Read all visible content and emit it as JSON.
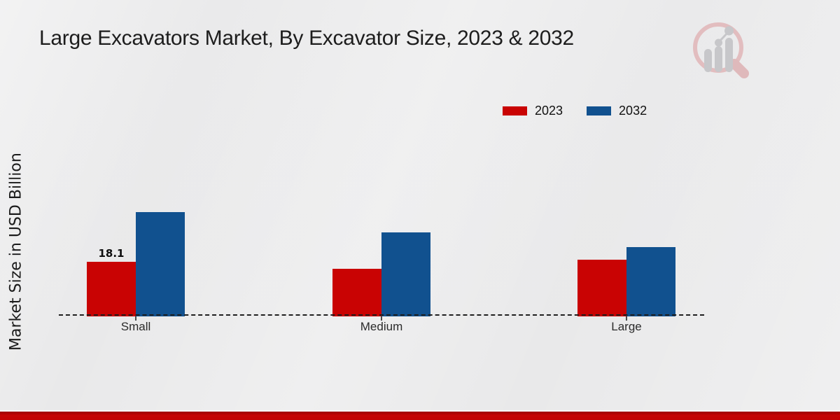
{
  "chart_data": {
    "type": "bar",
    "title": "Large Excavators Market, By Excavator Size, 2023 & 2032",
    "ylabel": "Market Size in USD Billion",
    "xlabel": "",
    "categories": [
      "Small",
      "Medium",
      "Large"
    ],
    "series": [
      {
        "name": "2023",
        "color": "#c90303",
        "values": [
          18.1,
          15.8,
          18.8
        ]
      },
      {
        "name": "2032",
        "color": "#11518f",
        "values": [
          34.6,
          27.9,
          23.0
        ]
      }
    ],
    "data_labels": [
      {
        "series": "2023",
        "category": "Small",
        "text": "18.1"
      }
    ],
    "legend_position": "top-right",
    "baseline_style": "dashed",
    "grid": false,
    "ylim": [
      0,
      40
    ]
  },
  "branding": {
    "logo_name": "mrfr-magnifier-chart-watermark",
    "footer_band_color": "#c20404",
    "logo_gray": "#c7c7ca",
    "logo_pink": "#e2bdbf"
  }
}
